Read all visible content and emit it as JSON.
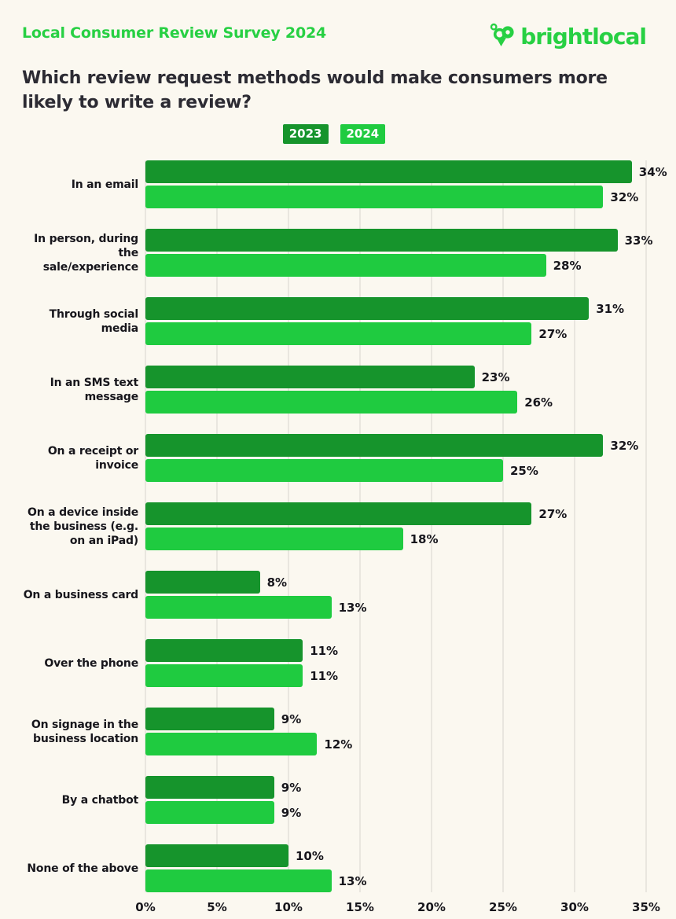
{
  "header": {
    "survey_label": "Local Consumer Review Survey 2024",
    "logo_text": "brightlocal"
  },
  "title": "Which review request methods would make consumers more likely to write a review?",
  "colors": {
    "background": "#fbf8f0",
    "brand_green": "#27d043",
    "dark_green_2023": "#16942c",
    "light_green_2024": "#1fcb40",
    "gridline": "#e9e6df",
    "text_dark": "#17161c"
  },
  "legend": [
    {
      "label": "2023",
      "color": "#16942c"
    },
    {
      "label": "2024",
      "color": "#1fcb40"
    }
  ],
  "chart_data": {
    "type": "bar",
    "orientation": "horizontal",
    "title": "Which review request methods would make consumers more likely to write a review?",
    "categories": [
      "In an email",
      "In person, during the sale/experience",
      "Through social media",
      "In an SMS text message",
      "On a receipt or invoice",
      "On a device inside the business (e.g. on an iPad)",
      "On a business card",
      "Over the phone",
      "On signage in the business location",
      "By a chatbot",
      "None of the above"
    ],
    "series": [
      {
        "name": "2023",
        "color": "#16942c",
        "values": [
          34,
          33,
          31,
          23,
          32,
          27,
          8,
          11,
          9,
          9,
          10
        ]
      },
      {
        "name": "2024",
        "color": "#1fcb40",
        "values": [
          32,
          28,
          27,
          26,
          25,
          18,
          13,
          11,
          12,
          9,
          13
        ]
      }
    ],
    "value_suffix": "%",
    "xlim": [
      0,
      35
    ],
    "x_ticks": [
      "0%",
      "5%",
      "10%",
      "15%",
      "20%",
      "25%",
      "30%",
      "35%"
    ],
    "grid": true,
    "legend_position": "top-center"
  }
}
